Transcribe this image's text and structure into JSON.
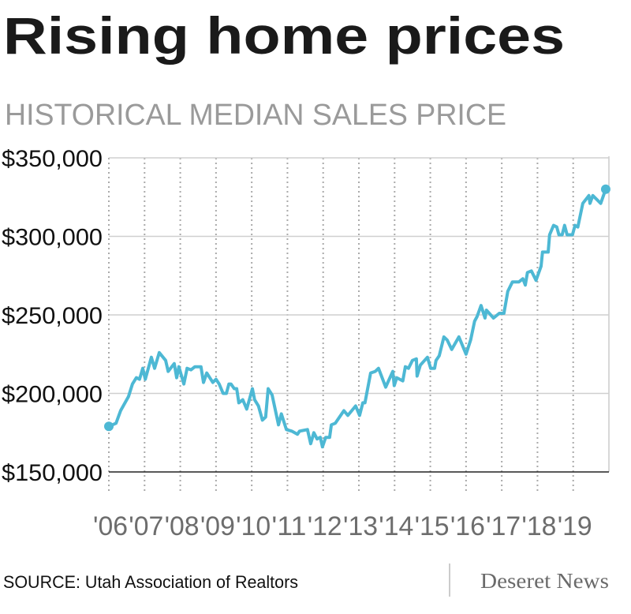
{
  "chart_data": {
    "type": "line",
    "title": "Rising home prices",
    "subtitle": "HISTORICAL MEDIAN SALES PRICE",
    "xlabel": "",
    "ylabel": "",
    "ylim": [
      150000,
      350000
    ],
    "xlim": [
      2006,
      2020
    ],
    "yticks": [
      150000,
      200000,
      250000,
      300000,
      350000
    ],
    "ytick_labels": [
      "$150,000",
      "$200,000",
      "$250,000",
      "$300,000",
      "$350,000"
    ],
    "xtick_labels": [
      "'06",
      "'07",
      "'08",
      "'09",
      "'10",
      "'11",
      "'12",
      "'13",
      "'14",
      "'15",
      "'16",
      "'17",
      "'18",
      "'19"
    ],
    "grid": true,
    "series": [
      {
        "name": "Median sales price",
        "color": "#4db8d4",
        "x": [
          2006.0,
          2006.2,
          2006.33,
          2006.55,
          2006.66,
          2006.77,
          2006.86,
          2006.95,
          2007.02,
          2007.19,
          2007.28,
          2007.41,
          2007.59,
          2007.66,
          2007.83,
          2007.9,
          2007.96,
          2008.1,
          2008.19,
          2008.3,
          2008.41,
          2008.58,
          2008.65,
          2008.74,
          2008.91,
          2009.0,
          2009.09,
          2009.2,
          2009.29,
          2009.36,
          2009.42,
          2009.51,
          2009.58,
          2009.64,
          2009.75,
          2009.86,
          2010.02,
          2010.08,
          2010.19,
          2010.3,
          2010.39,
          2010.46,
          2010.57,
          2010.75,
          2010.83,
          2010.97,
          2011.12,
          2011.28,
          2011.34,
          2011.56,
          2011.65,
          2011.74,
          2011.83,
          2011.92,
          2011.98,
          2012.07,
          2012.18,
          2012.23,
          2012.34,
          2012.58,
          2012.69,
          2012.91,
          2013.02,
          2013.11,
          2013.17,
          2013.33,
          2013.46,
          2013.55,
          2013.75,
          2013.95,
          2013.99,
          2014.06,
          2014.23,
          2014.3,
          2014.39,
          2014.5,
          2014.61,
          2014.63,
          2014.72,
          2014.92,
          2015.01,
          2015.12,
          2015.16,
          2015.25,
          2015.38,
          2015.47,
          2015.6,
          2015.8,
          2016.0,
          2016.13,
          2016.24,
          2016.31,
          2016.42,
          2016.53,
          2016.57,
          2016.77,
          2016.93,
          2017.06,
          2017.17,
          2017.3,
          2017.48,
          2017.59,
          2017.66,
          2017.72,
          2017.83,
          2017.96,
          2018.1,
          2018.14,
          2018.3,
          2018.34,
          2018.45,
          2018.54,
          2018.6,
          2018.69,
          2018.76,
          2018.83,
          2018.98,
          2019.05,
          2019.13,
          2019.27,
          2019.44,
          2019.47,
          2019.55,
          2019.77,
          2019.91
        ],
        "y": [
          179000,
          181000,
          189000,
          198000,
          206000,
          210000,
          209000,
          216000,
          209000,
          223000,
          216000,
          226000,
          221000,
          214000,
          219000,
          210000,
          217000,
          206000,
          216000,
          215000,
          217000,
          217000,
          207000,
          213000,
          207000,
          209000,
          206000,
          200000,
          200000,
          206000,
          206000,
          203000,
          203000,
          194000,
          196000,
          190000,
          203000,
          196000,
          192000,
          183000,
          185000,
          203000,
          199000,
          180000,
          187000,
          177000,
          176000,
          174000,
          176000,
          177000,
          168000,
          175000,
          171000,
          172000,
          166000,
          172000,
          172000,
          180000,
          181000,
          189000,
          186000,
          192000,
          186000,
          194000,
          194000,
          213000,
          214000,
          216000,
          204000,
          214000,
          205000,
          210000,
          208000,
          217000,
          216000,
          221000,
          222000,
          211000,
          218000,
          223000,
          216000,
          216000,
          221000,
          224000,
          236000,
          234000,
          228000,
          236000,
          225000,
          234000,
          246000,
          249000,
          256000,
          248000,
          253000,
          248000,
          251000,
          251000,
          265000,
          271000,
          271000,
          273000,
          269000,
          277000,
          278000,
          272000,
          281000,
          290000,
          290000,
          301000,
          307000,
          306000,
          301000,
          301000,
          307000,
          301000,
          301000,
          307000,
          306000,
          321000,
          326000,
          321000,
          326000,
          321000,
          330000
        ]
      }
    ],
    "source": "SOURCE: Utah Association of Realtors",
    "brand": "Deseret News"
  }
}
